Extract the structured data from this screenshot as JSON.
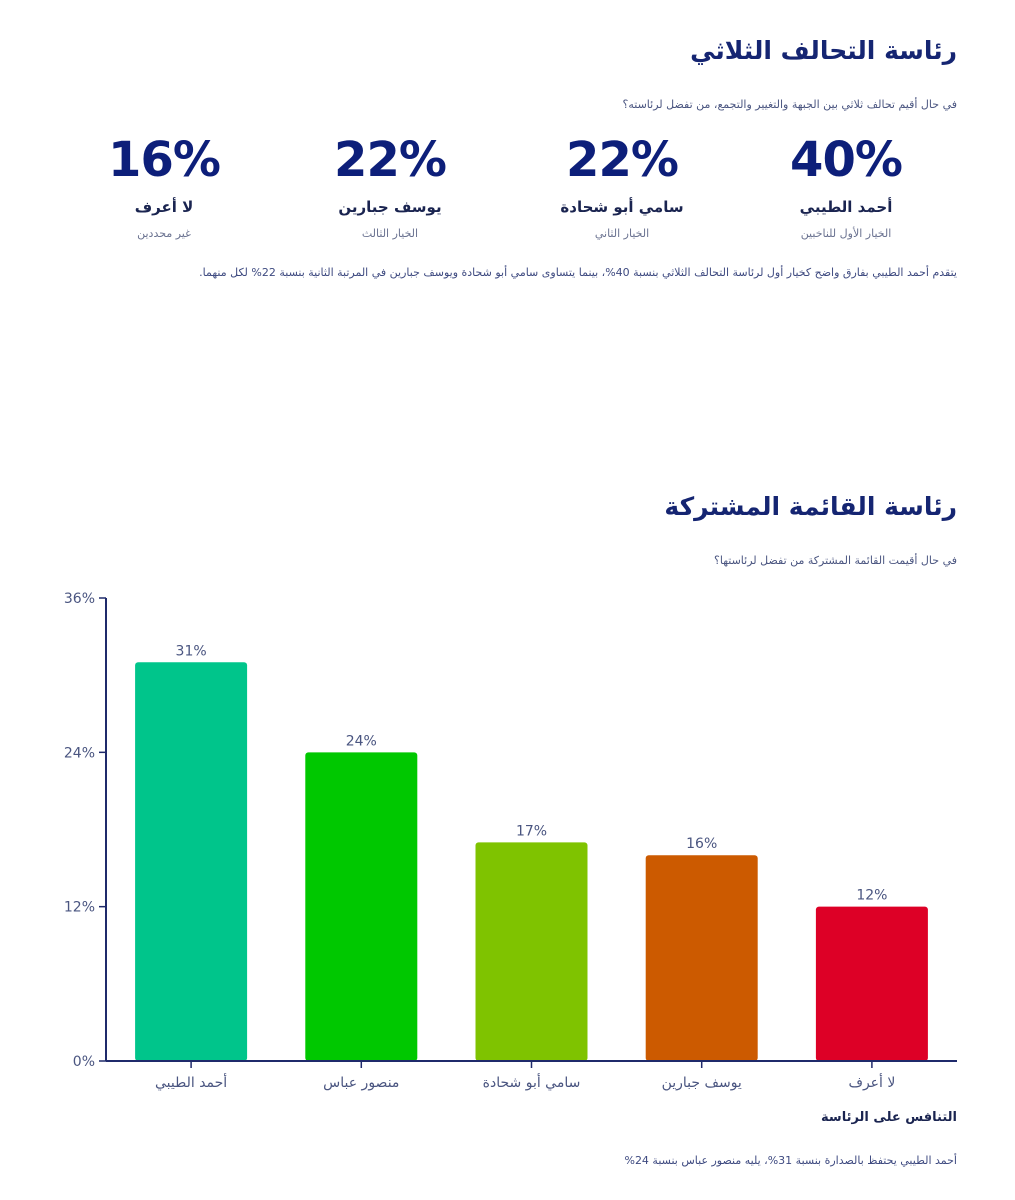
{
  "section1": {
    "title": "رئاسة التحالف الثلاثي",
    "question": "في حال أقيم تحالف ثلاثي بين الجبهة والتغيير والتجمع، من تفضل لرئاسته؟",
    "stats": [
      {
        "value": "40%",
        "name": "أحمد الطيبي",
        "desc": "الخيار الأول للناخبين"
      },
      {
        "value": "22%",
        "name": "سامي أبو شحادة",
        "desc": "الخيار الثاني"
      },
      {
        "value": "22%",
        "name": "يوسف جبارين",
        "desc": "الخيار الثالث"
      },
      {
        "value": "16%",
        "name": "لا أعرف",
        "desc": "غير محددين"
      }
    ],
    "summary": "يتقدم أحمد الطيبي بفارق واضح كخيار أول لرئاسة التحالف الثلاثي بنسبة 40%، بينما يتساوى سامي أبو شحادة ويوسف جبارين في المرتبة الثانية بنسبة 22% لكل منهما."
  },
  "section2": {
    "title": "رئاسة القائمة المشتركة",
    "question": "في حال أقيمت القائمة المشتركة من تفضل لرئاستها؟",
    "summary": "أحمد الطيبي يحتفظ بالصدارة بنسبة 31%، يليه منصور عباس بنسبة 24%"
  },
  "chart_data": {
    "type": "bar",
    "categories": [
      "أحمد الطيبي",
      "منصور عباس",
      "سامي أبو شحادة",
      "يوسف جبارين",
      "لا أعرف"
    ],
    "values": [
      31,
      24,
      17,
      16,
      12
    ],
    "value_labels": [
      "31%",
      "24%",
      "17%",
      "16%",
      "12%"
    ],
    "colors": [
      "#00c58b",
      "#00c800",
      "#7fc300",
      "#cc5a00",
      "#dd0026"
    ],
    "xlabel": "التنافس على الرئاسة",
    "ylabel": "",
    "ylim": [
      0,
      36
    ],
    "yticks": [
      0,
      12,
      24,
      36
    ],
    "ytick_labels": [
      "0%",
      "12%",
      "24%",
      "36%"
    ],
    "axis_color": "#1f2a6b",
    "grid": false
  }
}
